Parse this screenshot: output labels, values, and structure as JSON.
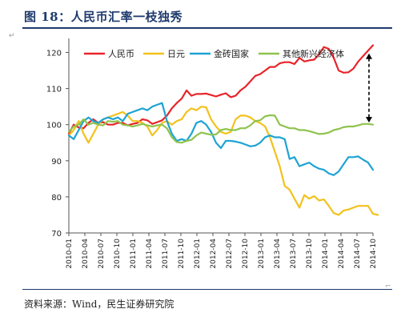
{
  "title": "图 18：人民币汇率一枝独秀",
  "source": "资料来源：Wind，民生证券研究院",
  "marks": {
    "para": "↵",
    "bracket": "⌐"
  },
  "chart_data": {
    "type": "line",
    "ylim": [
      70,
      123
    ],
    "yticks": [
      70,
      80,
      90,
      100,
      110,
      120
    ],
    "grid": false,
    "legend_position": "top",
    "x_labels": [
      "2010-01",
      "2010-04",
      "2010-07",
      "2010-10",
      "2011-01",
      "2011-04",
      "2011-07",
      "2011-10",
      "2012-01",
      "2012-04",
      "2012-07",
      "2012-10",
      "2013-01",
      "2013-04",
      "2013-07",
      "2013-10",
      "2014-01",
      "2014-04",
      "2014-07",
      "2014-10"
    ],
    "series": [
      {
        "name": "人民币",
        "color": "#e8242b",
        "values": [
          97.5,
          100,
          99.2,
          99,
          100.5,
          101.5,
          100.5,
          100.7,
          100,
          100,
          100.5,
          100.5,
          99.8,
          100.2,
          100.5,
          101.5,
          101.2,
          100.2,
          100.7,
          101.2,
          102.5,
          104.5,
          106,
          107.2,
          109.5,
          108,
          108.5,
          108.5,
          108.6,
          108.2,
          107.8,
          108.3,
          108.7,
          107.6,
          108,
          109.5,
          110.5,
          112,
          113.5,
          114,
          115,
          116,
          116,
          117,
          117.3,
          117.3,
          116.8,
          118.5,
          117.5,
          117.8,
          118,
          119.5,
          121.5,
          121,
          118.5,
          115,
          114.4,
          114.5,
          115.5,
          117.5,
          119,
          120.5,
          122
        ]
      },
      {
        "name": "日元",
        "color": "#f2c21c",
        "values": [
          97,
          98.5,
          101,
          97.5,
          95,
          97.5,
          100,
          101.5,
          102,
          102.5,
          103,
          103.5,
          102.5,
          101,
          101,
          100.5,
          99.5,
          97,
          98.5,
          100.5,
          101,
          100,
          101,
          101.5,
          103.5,
          104.5,
          104,
          105,
          104.8,
          101.5,
          99.5,
          98,
          97.5,
          98,
          101.5,
          102.5,
          102.5,
          102,
          101,
          100.5,
          99.5,
          96.5,
          92.5,
          88.5,
          83,
          82,
          79.5,
          77,
          80.5,
          79.5,
          80.2,
          79,
          79.3,
          77.5,
          75.5,
          75,
          76.2,
          76.5,
          77,
          77.5,
          77.5,
          77.5,
          75.3,
          75
        ]
      },
      {
        "name": "金砖国家",
        "color": "#1ea3d3",
        "values": [
          97,
          96,
          98.5,
          101,
          102,
          101,
          100.5,
          101.5,
          102,
          101.5,
          102,
          101,
          103,
          103.5,
          104,
          104.5,
          104,
          105,
          105.5,
          106,
          101,
          97.5,
          95.5,
          96,
          95.5,
          97.5,
          100.5,
          101,
          100,
          98,
          95,
          93.5,
          95.5,
          95.5,
          95.3,
          95,
          94.5,
          94,
          94.2,
          95,
          96.5,
          97,
          96.5,
          96.5,
          96,
          90.5,
          91,
          88.5,
          89,
          89.5,
          88.5,
          87.8,
          87.5,
          86.5,
          86,
          87,
          89,
          91,
          91,
          91.2,
          90.3,
          89.5,
          87.5
        ]
      },
      {
        "name": "其他新兴经济体",
        "color": "#8fc34e",
        "values": [
          98,
          99.5,
          100,
          101.5,
          100,
          100.5,
          100,
          99.8,
          101,
          100.8,
          101,
          100,
          99.8,
          99.5,
          99.8,
          100.2,
          99.8,
          99.5,
          99.8,
          100,
          99,
          96.5,
          95.2,
          95,
          95.5,
          95.8,
          97,
          97.8,
          97.5,
          97.2,
          97.3,
          98.5,
          98.8,
          98.5,
          98.5,
          99,
          99,
          99.8,
          101,
          101.2,
          102.3,
          102.6,
          102.5,
          100,
          99.5,
          99,
          99,
          98.5,
          98.5,
          98.2,
          97.8,
          97.4,
          97.5,
          97.8,
          98.5,
          98.8,
          99.3,
          99.5,
          99.5,
          99.8,
          100.2,
          100.2,
          100
        ]
      }
    ]
  }
}
